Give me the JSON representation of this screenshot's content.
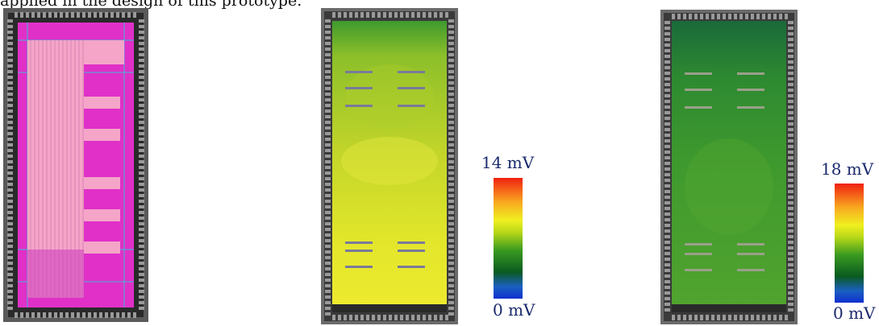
{
  "caption_fragment": "applied in the design of this prototype.",
  "panels": [
    {
      "id": "layout",
      "kind": "chip-layout"
    },
    {
      "id": "ir-drop-1",
      "kind": "ir-drop-map",
      "legend": {
        "max": "14 mV",
        "min": "0 mV"
      }
    },
    {
      "id": "ir-drop-2",
      "kind": "ir-drop-map",
      "legend": {
        "max": "18 mV",
        "min": "0 mV"
      }
    }
  ],
  "colors": {
    "layout_pink": "#f5a5c8",
    "layout_magenta": "#e020c8",
    "heatmap1_base": "#c8d820",
    "heatmap2_base": "#3f9a2e",
    "pad_ring": "#6b6b6b"
  }
}
